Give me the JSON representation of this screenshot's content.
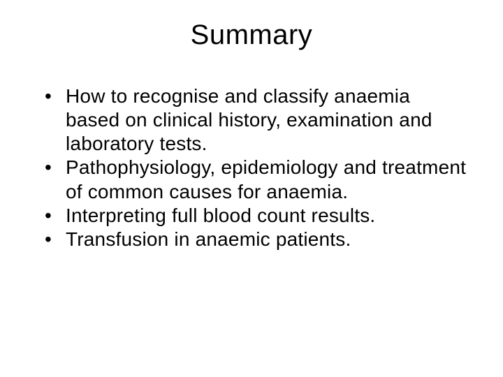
{
  "title": "Summary",
  "bullets": [
    "How to recognise and classify anaemia based on clinical history, examination and laboratory tests.",
    "Pathophysiology, epidemiology and treatment of common causes for anaemia.",
    "Interpreting full blood count results.",
    "Transfusion in anaemic patients."
  ],
  "style": {
    "background_color": "#ffffff",
    "text_color": "#000000",
    "font_family": "Arial",
    "title_fontsize": 40,
    "body_fontsize": 28,
    "bullet_char": "•"
  }
}
